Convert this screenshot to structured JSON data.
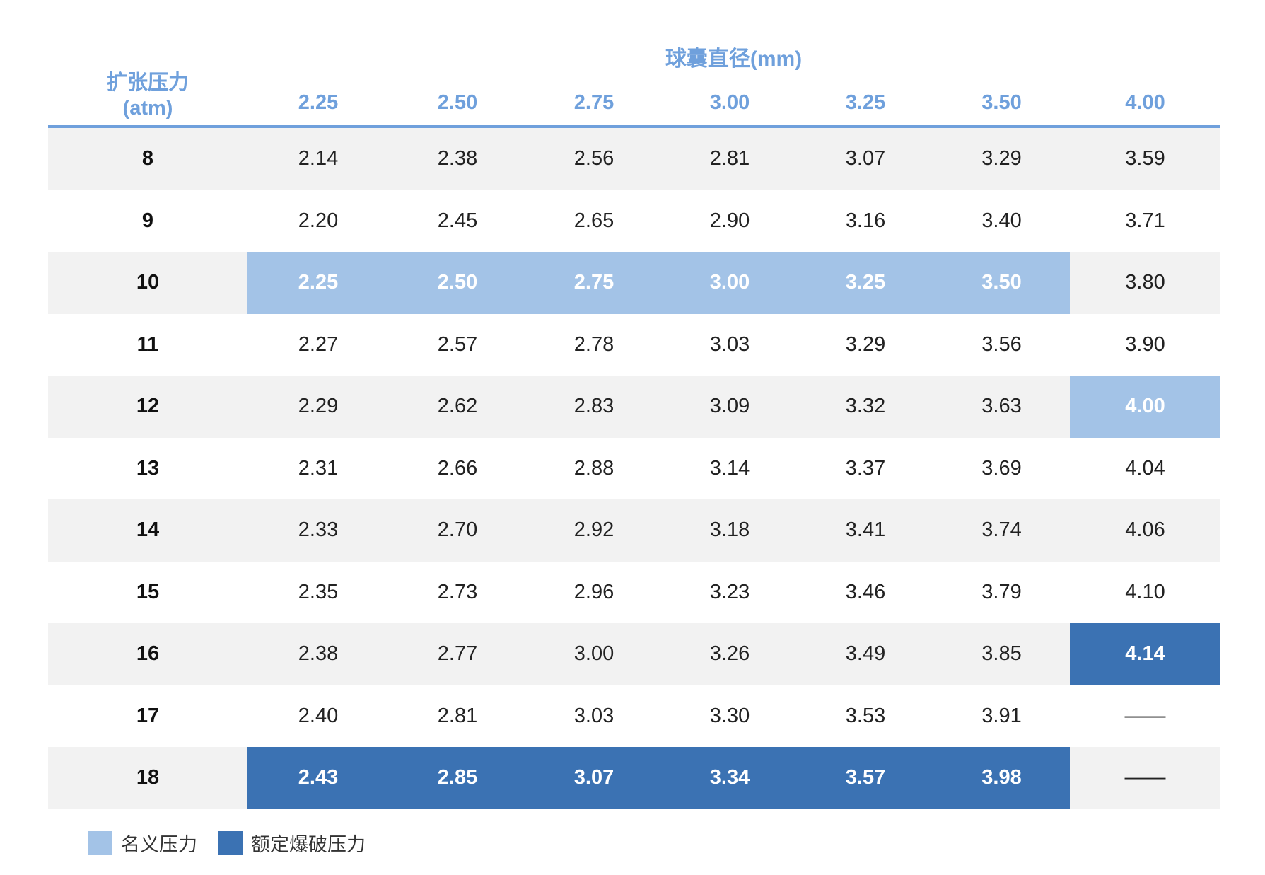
{
  "header": {
    "super_title": "球囊直径(mm)",
    "row_header_line1": "扩张压力",
    "row_header_line2": "(atm)",
    "diameters": [
      "2.25",
      "2.50",
      "2.75",
      "3.00",
      "3.25",
      "3.50",
      "4.00"
    ]
  },
  "rows": [
    {
      "pressure": "8",
      "values": [
        "2.14",
        "2.38",
        "2.56",
        "2.81",
        "3.07",
        "3.29",
        "3.59"
      ],
      "marks": [
        "",
        "",
        "",
        "",
        "",
        "",
        ""
      ]
    },
    {
      "pressure": "9",
      "values": [
        "2.20",
        "2.45",
        "2.65",
        "2.90",
        "3.16",
        "3.40",
        "3.71"
      ],
      "marks": [
        "",
        "",
        "",
        "",
        "",
        "",
        ""
      ]
    },
    {
      "pressure": "10",
      "values": [
        "2.25",
        "2.50",
        "2.75",
        "3.00",
        "3.25",
        "3.50",
        "3.80"
      ],
      "marks": [
        "nominal",
        "nominal",
        "nominal",
        "nominal",
        "nominal",
        "nominal",
        ""
      ]
    },
    {
      "pressure": "11",
      "values": [
        "2.27",
        "2.57",
        "2.78",
        "3.03",
        "3.29",
        "3.56",
        "3.90"
      ],
      "marks": [
        "",
        "",
        "",
        "",
        "",
        "",
        ""
      ]
    },
    {
      "pressure": "12",
      "values": [
        "2.29",
        "2.62",
        "2.83",
        "3.09",
        "3.32",
        "3.63",
        "4.00"
      ],
      "marks": [
        "",
        "",
        "",
        "",
        "",
        "",
        "nominal"
      ]
    },
    {
      "pressure": "13",
      "values": [
        "2.31",
        "2.66",
        "2.88",
        "3.14",
        "3.37",
        "3.69",
        "4.04"
      ],
      "marks": [
        "",
        "",
        "",
        "",
        "",
        "",
        ""
      ]
    },
    {
      "pressure": "14",
      "values": [
        "2.33",
        "2.70",
        "2.92",
        "3.18",
        "3.41",
        "3.74",
        "4.06"
      ],
      "marks": [
        "",
        "",
        "",
        "",
        "",
        "",
        ""
      ]
    },
    {
      "pressure": "15",
      "values": [
        "2.35",
        "2.73",
        "2.96",
        "3.23",
        "3.46",
        "3.79",
        "4.10"
      ],
      "marks": [
        "",
        "",
        "",
        "",
        "",
        "",
        ""
      ]
    },
    {
      "pressure": "16",
      "values": [
        "2.38",
        "2.77",
        "3.00",
        "3.26",
        "3.49",
        "3.85",
        "4.14"
      ],
      "marks": [
        "",
        "",
        "",
        "",
        "",
        "",
        "burst"
      ]
    },
    {
      "pressure": "17",
      "values": [
        "2.40",
        "2.81",
        "3.03",
        "3.30",
        "3.53",
        "3.91",
        "——"
      ],
      "marks": [
        "",
        "",
        "",
        "",
        "",
        "",
        ""
      ]
    },
    {
      "pressure": "18",
      "values": [
        "2.43",
        "2.85",
        "3.07",
        "3.34",
        "3.57",
        "3.98",
        "——"
      ],
      "marks": [
        "burst",
        "burst",
        "burst",
        "burst",
        "burst",
        "burst",
        ""
      ]
    }
  ],
  "legend": {
    "nominal_label": "名义压力",
    "burst_label": "额定爆破压力"
  },
  "colors": {
    "header_blue": "#6fa0dc",
    "nominal": "#a3c3e7",
    "burst": "#3b72b3",
    "stripe": "#f2f2f2"
  }
}
